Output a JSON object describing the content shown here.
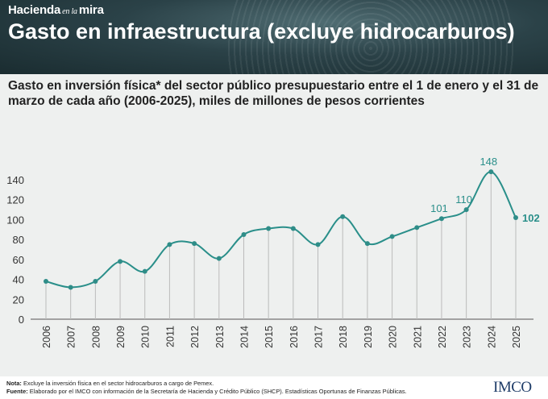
{
  "brand": {
    "part1": "Hacienda",
    "part2": "en la",
    "part3": "mira"
  },
  "title": "Gasto en infraestructura (excluye hidrocarburos)",
  "subtitle": "Gasto en inversión física* del sector público presupuestario entre el 1 de enero y el 31 de marzo de cada año (2006-2025), miles de millones de pesos corrientes",
  "footer": {
    "note_label": "Nota:",
    "note_text": "Excluye la inversión física en el sector hidrocarburos a cargo de Pemex.",
    "source_label": "Fuente:",
    "source_text": "Elaborado por el IMCO con información de la Secretaría de Hacienda y Crédito Público (SHCP). Estadísticas Oportunas de Finanzas Públicas.",
    "logo": "IMCO"
  },
  "colors": {
    "line": "#2a8f8a",
    "marker": "#2f8d88",
    "label": "#2a8f8a",
    "header": "#2b4248"
  },
  "chart_data": {
    "type": "line",
    "x": [
      "2006",
      "2007",
      "2008",
      "2009",
      "2010",
      "2011",
      "2012",
      "2013",
      "2014",
      "2015",
      "2016",
      "2017",
      "2018",
      "2019",
      "2020",
      "2021",
      "2022",
      "2023",
      "2024",
      "2025"
    ],
    "values": [
      38,
      32,
      38,
      58,
      48,
      75,
      76,
      61,
      85,
      91,
      91,
      75,
      103,
      76,
      83,
      92,
      101,
      110,
      148,
      102
    ],
    "data_labels": [
      {
        "x": "2022",
        "text": "101"
      },
      {
        "x": "2023",
        "text": "110"
      },
      {
        "x": "2024",
        "text": "148"
      },
      {
        "x": "2025",
        "text": "102",
        "bold": true
      }
    ],
    "ylim": [
      0,
      150
    ],
    "yticks": [
      0,
      20,
      40,
      60,
      80,
      100,
      120,
      140
    ],
    "grid": "vertical drop lines",
    "xlabel": "",
    "ylabel": ""
  }
}
